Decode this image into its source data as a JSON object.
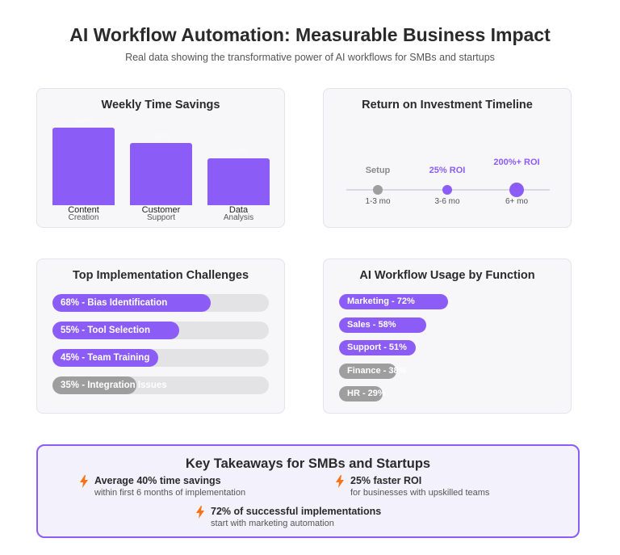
{
  "header": {
    "title": "AI Workflow Automation: Measurable Business Impact",
    "subtitle": "Real data showing the transformative power of AI workflows for SMBs and startups"
  },
  "colors": {
    "accent": "#8b5cf6",
    "muted": "#9e9e9e",
    "track": "#e3e3e6"
  },
  "chart_data": [
    {
      "type": "bar",
      "title": "Weekly Time Savings",
      "categories": [
        [
          "Content",
          "Creation"
        ],
        [
          "Customer",
          "Support"
        ],
        [
          "Data",
          "Analysis"
        ]
      ],
      "values": [
        50,
        40,
        30
      ],
      "labels": [
        "50%",
        "40%",
        "30%"
      ],
      "ylim": [
        0,
        50
      ]
    },
    {
      "type": "line",
      "title": "Return on Investment Timeline",
      "points": [
        {
          "label": "Setup",
          "period": "1-3 mo",
          "state": "muted"
        },
        {
          "label": "25% ROI",
          "period": "3-6 mo",
          "state": "accent"
        },
        {
          "label": "200%+ ROI",
          "period": "6+ mo",
          "state": "accent-large"
        }
      ]
    },
    {
      "type": "bar",
      "title": "Top Implementation Challenges",
      "categories": [
        "Bias Identification",
        "Tool Selection",
        "Team Training",
        "Integration Issues"
      ],
      "values": [
        68,
        55,
        45,
        35
      ],
      "labels": [
        "68% - Bias Identification",
        "55% - Tool Selection",
        "45% - Team Training",
        "35% - Integration Issues"
      ],
      "states": [
        "accent",
        "accent",
        "accent",
        "muted"
      ]
    },
    {
      "type": "bar",
      "title": "AI Workflow Usage by Function",
      "categories": [
        "Marketing",
        "Sales",
        "Support",
        "Finance",
        "HR"
      ],
      "values": [
        72,
        58,
        51,
        38,
        29
      ],
      "labels": [
        "Marketing - 72%",
        "Sales - 58%",
        "Support - 51%",
        "Finance - 38%",
        "HR - 29%"
      ],
      "states": [
        "accent",
        "accent",
        "accent",
        "muted",
        "muted"
      ]
    }
  ],
  "takeaways": {
    "title": "Key Takeaways for SMBs and Startups",
    "items": [
      {
        "icon": "lightning-bolt-icon",
        "head": "Average 40% time savings",
        "sub": "within first 6 months of implementation"
      },
      {
        "icon": "lightning-bolt-icon",
        "head": "25% faster ROI",
        "sub": "for businesses with upskilled teams"
      },
      {
        "icon": "lightning-bolt-icon",
        "head": "72% of successful implementations",
        "sub": "start with marketing automation"
      }
    ]
  }
}
